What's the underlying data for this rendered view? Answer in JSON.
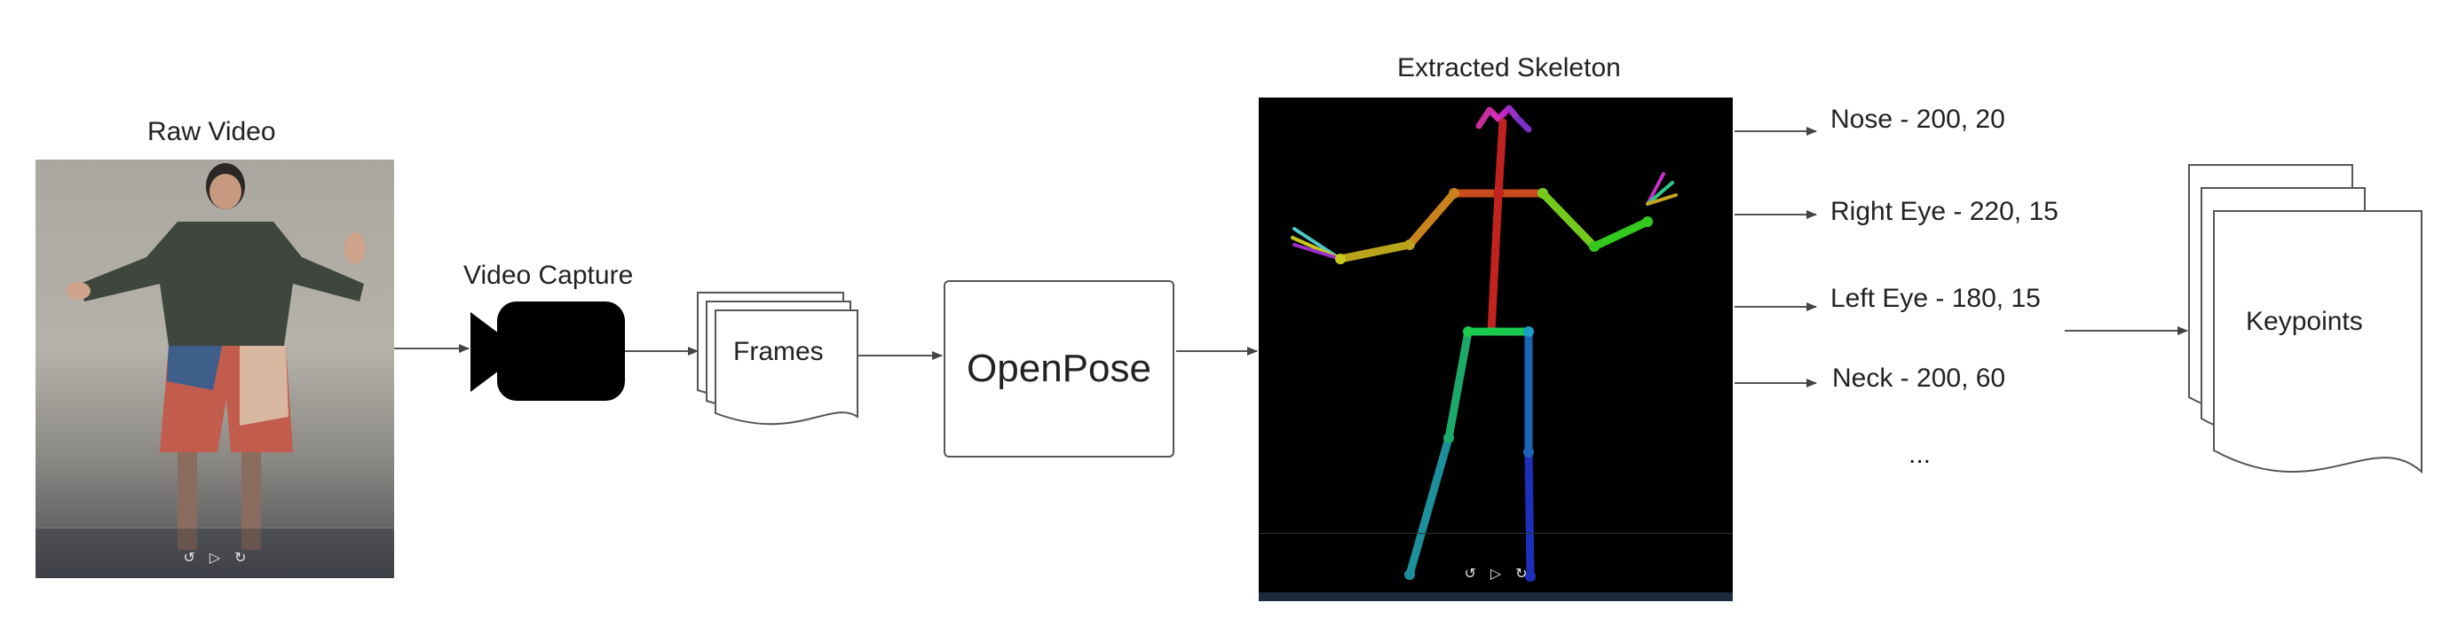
{
  "diagram": {
    "raw_video": {
      "title": "Raw Video"
    },
    "video_capture": {
      "label": "Video Capture",
      "icon": "video-camera-icon"
    },
    "frames": {
      "label": "Frames",
      "icon": "stacked-document-icon"
    },
    "openpose": {
      "label": "OpenPose"
    },
    "extracted_skeleton": {
      "title": "Extracted Skeleton"
    },
    "keypoint_list": {
      "items": [
        "Nose - 200, 20",
        "Right Eye - 220, 15",
        "Left Eye - 180, 15",
        "Neck - 200, 60"
      ],
      "ellipsis": "..."
    },
    "keypoints_output": {
      "label": "Keypoints",
      "icon": "stacked-document-icon"
    },
    "colors": {
      "line": "#555555",
      "arrow": "#444444",
      "camera": "#000000",
      "skeleton_bg": "#000000"
    }
  }
}
